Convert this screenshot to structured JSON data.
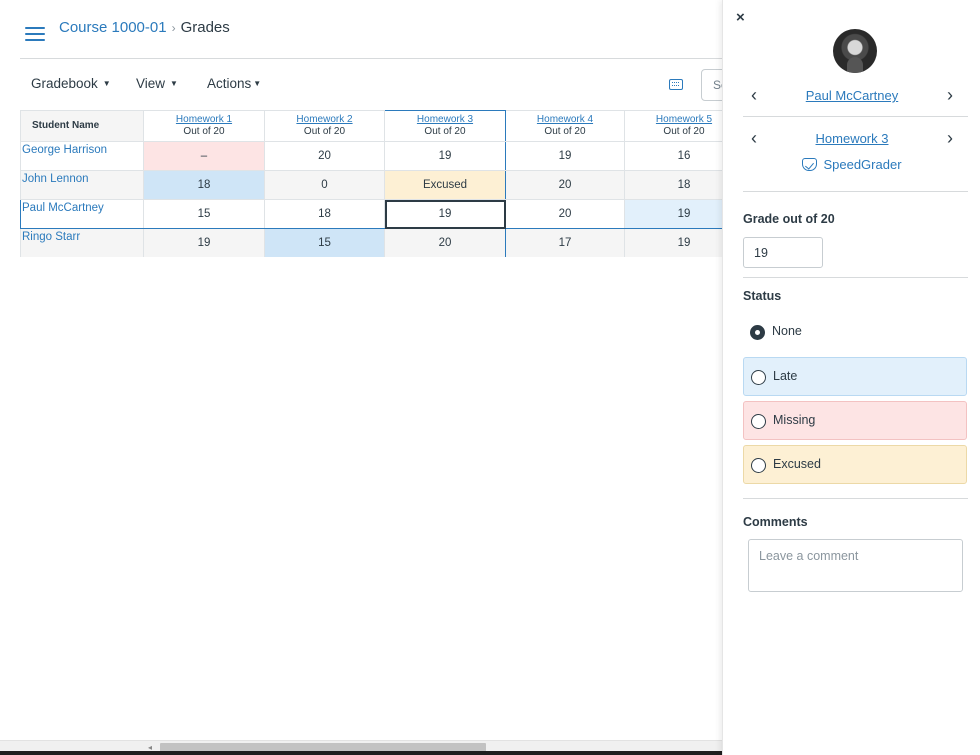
{
  "breadcrumb": {
    "course": "Course 1000-01",
    "separator": "›",
    "current": "Grades"
  },
  "toolbar": {
    "gradebook": "Gradebook",
    "view": "View",
    "actions": "Actions",
    "caret": "▼",
    "search_placeholder": "Search"
  },
  "grid": {
    "name_header": "Student Name",
    "columns": [
      {
        "title": "Homework 1",
        "sub": "Out of 20"
      },
      {
        "title": "Homework 2",
        "sub": "Out of 20"
      },
      {
        "title": "Homework 3",
        "sub": "Out of 20"
      },
      {
        "title": "Homework 4",
        "sub": "Out of 20"
      },
      {
        "title": "Homework 5",
        "sub": "Out of 20"
      }
    ],
    "rows": [
      {
        "name": "George Harrison",
        "grades": [
          "–",
          "20",
          "19",
          "19",
          "16"
        ]
      },
      {
        "name": "John Lennon",
        "grades": [
          "18",
          "0",
          "Excused",
          "20",
          "18"
        ]
      },
      {
        "name": "Paul McCartney",
        "grades": [
          "15",
          "18",
          "19",
          "20",
          "19"
        ]
      },
      {
        "name": "Ringo Starr",
        "grades": [
          "19",
          "15",
          "20",
          "17",
          "19"
        ]
      }
    ]
  },
  "scrollbar": {
    "arrow": "◂"
  },
  "tray": {
    "close": "×",
    "student_name": "Paul McCartney",
    "assignment_name": "Homework 3",
    "prev_arrow": "‹",
    "next_arrow": "›",
    "speedgrader": "SpeedGrader",
    "grade_label": "Grade out of 20",
    "grade_value": "19",
    "status_label": "Status",
    "status_options": [
      "None",
      "Late",
      "Missing",
      "Excused"
    ],
    "comments_label": "Comments",
    "comment_placeholder": "Leave a comment"
  },
  "colors": {
    "link": "#2b7abc",
    "missing": "#fde4e4",
    "late": "#cfe5f7",
    "excused": "#fdf0d4"
  }
}
